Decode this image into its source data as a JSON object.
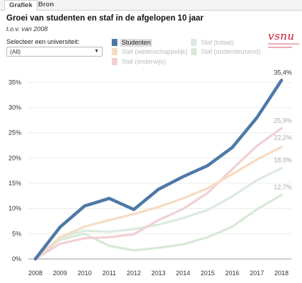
{
  "tabs": [
    {
      "label": "Grafiek",
      "active": true
    },
    {
      "label": "Bron",
      "active": false
    }
  ],
  "header": {
    "title": "Groei van studenten en staf in de afgelopen 10 jaar",
    "subtitle": "t.o.v. van 2008"
  },
  "filter": {
    "label": "Selecteer een universiteit:",
    "value": "(All)"
  },
  "logo": {
    "text": "vsnu",
    "color": "#c4162e"
  },
  "chart_data": {
    "type": "line",
    "title": "",
    "xlabel": "",
    "ylabel": "",
    "x": [
      2008,
      2009,
      2010,
      2011,
      2012,
      2013,
      2014,
      2015,
      2016,
      2017,
      2018
    ],
    "ylim": [
      0,
      38
    ],
    "yticks": [
      0,
      5,
      10,
      15,
      20,
      25,
      30,
      35
    ],
    "ytick_labels": [
      "0%",
      "5%",
      "10%",
      "15%",
      "20%",
      "25%",
      "30%",
      "35%"
    ],
    "grid": true,
    "legend_position": "top",
    "series": [
      {
        "name": "Staf (ondersteunend)",
        "color": "#d7e9d6",
        "values": [
          0,
          3.8,
          5.0,
          2.6,
          1.7,
          2.2,
          2.9,
          4.3,
          6.4,
          9.8,
          12.7
        ],
        "end_label": "12,7%"
      },
      {
        "name": "Staf (totaal)",
        "color": "#dbeadf",
        "values": [
          0,
          4.3,
          5.6,
          5.4,
          5.9,
          6.8,
          8.1,
          9.7,
          12.4,
          15.6,
          18.0
        ],
        "end_label": "18,0%"
      },
      {
        "name": "Staf (onderwijs)",
        "color": "#f2cfd3",
        "values": [
          0,
          3.0,
          4.1,
          4.3,
          4.9,
          7.7,
          9.9,
          13.1,
          17.8,
          22.4,
          25.9
        ],
        "end_label": "25,9%"
      },
      {
        "name": "Staf (wetenschappelijk)",
        "color": "#f6dcc3",
        "values": [
          0,
          4.3,
          6.4,
          7.7,
          8.9,
          10.3,
          12.0,
          14.0,
          16.8,
          19.7,
          22.2
        ],
        "end_label": "22,2%"
      },
      {
        "name": "Studenten",
        "color": "#4e79a7",
        "values": [
          0,
          6.3,
          10.5,
          12.0,
          9.8,
          13.8,
          16.3,
          18.5,
          22.1,
          28.0,
          35.4
        ],
        "end_label": "35,4%",
        "highlighted": true
      }
    ]
  }
}
